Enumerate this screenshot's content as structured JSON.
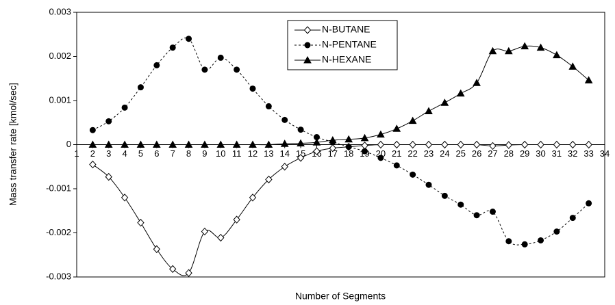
{
  "chart_data": {
    "type": "line",
    "x_label": "Number of Segments",
    "y_label": "Mass transfer rate [kmol/sec]",
    "x": [
      2,
      3,
      4,
      5,
      6,
      7,
      8,
      9,
      10,
      11,
      12,
      13,
      14,
      15,
      16,
      17,
      18,
      19,
      20,
      21,
      22,
      23,
      24,
      25,
      26,
      27,
      28,
      29,
      30,
      31,
      32,
      33
    ],
    "xlim": [
      1,
      34
    ],
    "xticks": [
      1,
      2,
      3,
      4,
      5,
      6,
      7,
      8,
      9,
      10,
      11,
      12,
      13,
      14,
      15,
      16,
      17,
      18,
      19,
      20,
      21,
      22,
      23,
      24,
      25,
      26,
      27,
      28,
      29,
      30,
      31,
      32,
      33,
      34
    ],
    "ylim": [
      -0.003,
      0.003
    ],
    "yticks": [
      -0.003,
      -0.002,
      -0.001,
      0,
      0.001,
      0.002,
      0.003
    ],
    "grid": false,
    "legend": "top-center",
    "series": [
      {
        "name": "N-BUTANE",
        "color": "#000000",
        "dash": "solid",
        "marker": "diamond-open",
        "values": [
          -0.00045,
          -0.00073,
          -0.0012,
          -0.00177,
          -0.00237,
          -0.00282,
          -0.00291,
          -0.00197,
          -0.00211,
          -0.0017,
          -0.0012,
          -0.00079,
          -0.0005,
          -0.0003,
          -0.00015,
          -8e-05,
          -5e-05,
          -2e-05,
          0,
          0,
          0,
          0,
          0,
          0,
          0,
          -3e-05,
          -1e-05,
          0,
          0,
          0,
          0,
          0
        ]
      },
      {
        "name": "N-PENTANE",
        "color": "#000000",
        "dash": "dotted",
        "marker": "circle-filled",
        "values": [
          0.00033,
          0.00053,
          0.00084,
          0.0013,
          0.0018,
          0.0022,
          0.0024,
          0.0017,
          0.00197,
          0.0017,
          0.00127,
          0.00087,
          0.00056,
          0.00034,
          0.00017,
          6e-05,
          -5e-05,
          -0.00015,
          -0.0003,
          -0.00047,
          -0.00068,
          -0.00091,
          -0.00116,
          -0.00136,
          -0.0016,
          -0.00152,
          -0.00219,
          -0.00226,
          -0.00217,
          -0.00197,
          -0.00166,
          -0.00133
        ]
      },
      {
        "name": "N-HEXANE",
        "color": "#000000",
        "dash": "solid",
        "marker": "triangle-filled",
        "values": [
          0,
          0,
          0,
          0,
          0,
          0,
          0,
          0,
          0,
          0,
          0,
          0,
          2e-05,
          3e-05,
          5e-05,
          0.0001,
          0.00012,
          0.00015,
          0.00023,
          0.00036,
          0.00054,
          0.00076,
          0.00095,
          0.00116,
          0.0014,
          0.00212,
          0.00212,
          0.00223,
          0.0022,
          0.00203,
          0.00177,
          0.00146
        ]
      }
    ]
  }
}
